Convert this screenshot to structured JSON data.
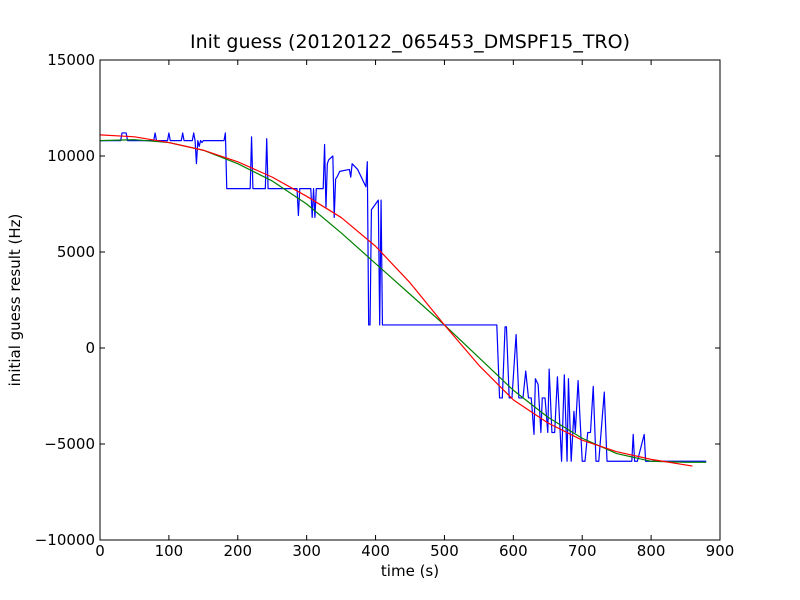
{
  "chart_data": {
    "type": "line",
    "title": "Init guess (20120122_065453_DMSPF15_TRO)",
    "xlabel": "time (s)",
    "ylabel": "initial guess result (Hz)",
    "xlim": [
      0,
      900
    ],
    "ylim": [
      -10000,
      15000
    ],
    "xticks": [
      0,
      100,
      200,
      300,
      400,
      500,
      600,
      700,
      800,
      900
    ],
    "yticks": [
      -10000,
      -5000,
      0,
      5000,
      10000,
      15000
    ],
    "xtick_labels": [
      "0",
      "100",
      "200",
      "300",
      "400",
      "500",
      "600",
      "700",
      "800",
      "900"
    ],
    "ytick_labels": [
      "−10000",
      "−5000",
      "0",
      "5000",
      "10000",
      "15000"
    ],
    "grid": false,
    "legend": "none",
    "series": [
      {
        "color": "#0000ff",
        "x": [
          0,
          30,
          32,
          38,
          40,
          78,
          80,
          82,
          98,
          100,
          102,
          118,
          120,
          122,
          134,
          136,
          138,
          140,
          142,
          144,
          146,
          148,
          150,
          180,
          182,
          184,
          186,
          190,
          218,
          220,
          222,
          224,
          228,
          240,
          242,
          244,
          246,
          250,
          286,
          288,
          290,
          292,
          306,
          308,
          310,
          312,
          314,
          318,
          324,
          326,
          328,
          330,
          332,
          338,
          340,
          342,
          344,
          348,
          362,
          364,
          366,
          374,
          386,
          388,
          390,
          392,
          394,
          404,
          406,
          408,
          410,
          480,
          500,
          520,
          540,
          560,
          570,
          572,
          576,
          580,
          584,
          588,
          590,
          594,
          598,
          604,
          608,
          612,
          614,
          618,
          622,
          626,
          630,
          632,
          636,
          640,
          642,
          646,
          650,
          652,
          656,
          660,
          664,
          668,
          670,
          674,
          678,
          680,
          684,
          688,
          690,
          694,
          700,
          704,
          708,
          712,
          716,
          720,
          724,
          732,
          736,
          740,
          744,
          748,
          772,
          774,
          776,
          778,
          780,
          790,
          792,
          794,
          800,
          840,
          880
        ],
        "y": [
          10800,
          10800,
          11200,
          11200,
          10800,
          10800,
          11200,
          10800,
          10800,
          11200,
          10800,
          10800,
          11200,
          10800,
          10800,
          11200,
          10800,
          9600,
          10800,
          10500,
          10800,
          10700,
          10800,
          10800,
          11200,
          8300,
          8300,
          8300,
          8300,
          11000,
          8300,
          8300,
          8300,
          8300,
          10900,
          8300,
          8300,
          8300,
          8300,
          6900,
          8300,
          8300,
          8300,
          6800,
          8300,
          6800,
          8300,
          8300,
          8300,
          10600,
          7300,
          9600,
          9800,
          10000,
          6800,
          8800,
          8900,
          9200,
          9300,
          8900,
          9600,
          9300,
          8400,
          9700,
          1200,
          1200,
          7200,
          7700,
          1200,
          7700,
          1200,
          1200,
          1200,
          1200,
          1200,
          1200,
          1200,
          1200,
          1200,
          -2600,
          -2600,
          1100,
          1100,
          -2600,
          -2600,
          700,
          -2600,
          -2600,
          -2600,
          -1200,
          -2600,
          -2600,
          -4500,
          -1600,
          -1900,
          -4400,
          -2600,
          -2600,
          -4400,
          -1100,
          -4400,
          -4400,
          -1500,
          -4400,
          -5900,
          -1400,
          -5900,
          -1600,
          -5900,
          -3300,
          -4400,
          -1700,
          -5900,
          -5900,
          -4400,
          -4400,
          -2000,
          -5900,
          -5900,
          -2300,
          -5900,
          -5900,
          -5900,
          -5900,
          -5900,
          -4500,
          -5900,
          -5900,
          -5900,
          -4500,
          -5900,
          -5900,
          -5900,
          -5900,
          -5900
        ]
      },
      {
        "color": "#008000",
        "x": [
          0,
          50,
          100,
          150,
          200,
          250,
          300,
          350,
          400,
          450,
          500,
          550,
          600,
          650,
          700,
          750,
          800,
          850,
          880
        ],
        "y": [
          10800,
          10850,
          10700,
          10300,
          9600,
          8700,
          7500,
          6000,
          4400,
          2800,
          1200,
          -500,
          -2200,
          -3600,
          -4700,
          -5500,
          -5900,
          -5950,
          -5950
        ]
      },
      {
        "color": "#ff0000",
        "x": [
          0,
          50,
          100,
          150,
          200,
          250,
          300,
          350,
          400,
          450,
          500,
          550,
          600,
          650,
          700,
          750,
          800,
          860
        ],
        "y": [
          11100,
          11000,
          10700,
          10300,
          9700,
          8900,
          7900,
          6800,
          5300,
          3400,
          1200,
          -900,
          -2700,
          -3900,
          -4800,
          -5400,
          -5800,
          -6150
        ]
      }
    ]
  }
}
